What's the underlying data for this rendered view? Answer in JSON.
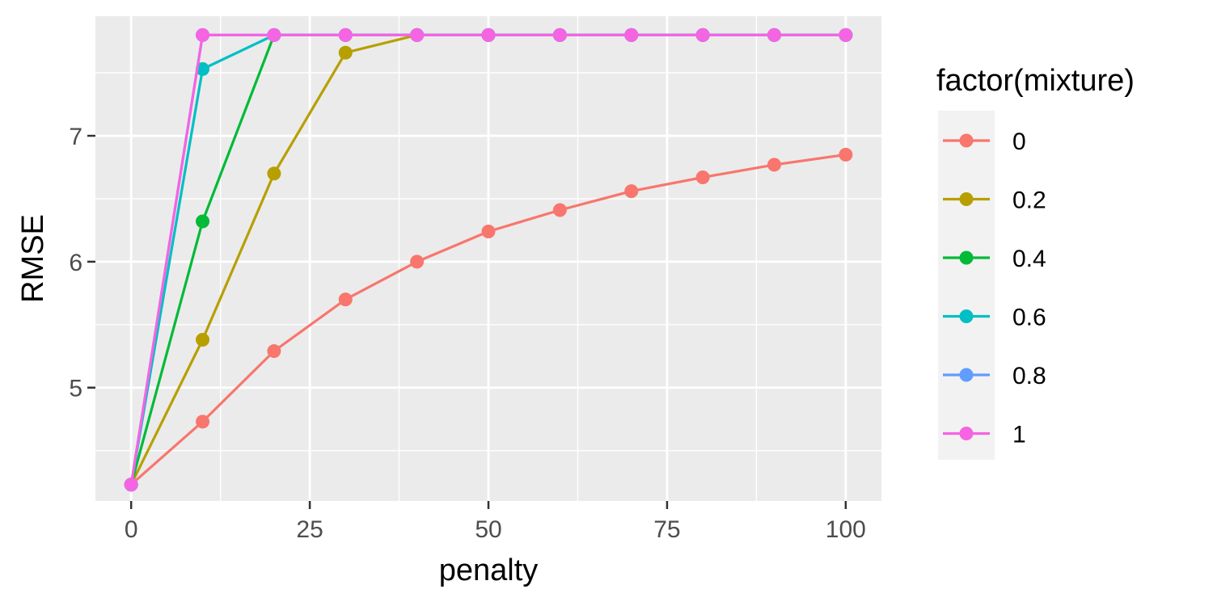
{
  "chart_data": {
    "type": "line",
    "title": "",
    "xlabel": "penalty",
    "ylabel": "RMSE",
    "xlim": [
      -5,
      105
    ],
    "ylim": [
      4.1,
      7.95
    ],
    "x_ticks": [
      0,
      25,
      50,
      75,
      100
    ],
    "x_tick_labels": [
      "0",
      "25",
      "50",
      "75",
      "100"
    ],
    "y_ticks": [
      5,
      6,
      7
    ],
    "y_tick_labels": [
      "5",
      "6",
      "7"
    ],
    "grid": true,
    "legend": {
      "title": "factor(mixture)",
      "position": "right"
    },
    "x": [
      0,
      10,
      20,
      30,
      40,
      50,
      60,
      70,
      80,
      90,
      100
    ],
    "series": [
      {
        "name": "0",
        "color": "#F8766D",
        "values": [
          4.23,
          4.73,
          5.29,
          5.7,
          6.0,
          6.24,
          6.41,
          6.56,
          6.67,
          6.77,
          6.85
        ]
      },
      {
        "name": "0.2",
        "color": "#B79F00",
        "values": [
          4.23,
          5.38,
          6.7,
          7.66,
          7.8,
          7.8,
          7.8,
          7.8,
          7.8,
          7.8,
          7.8
        ]
      },
      {
        "name": "0.4",
        "color": "#00BA38",
        "values": [
          4.23,
          6.32,
          7.8,
          7.8,
          7.8,
          7.8,
          7.8,
          7.8,
          7.8,
          7.8,
          7.8
        ]
      },
      {
        "name": "0.6",
        "color": "#00BFC4",
        "values": [
          4.23,
          7.53,
          7.8,
          7.8,
          7.8,
          7.8,
          7.8,
          7.8,
          7.8,
          7.8,
          7.8
        ]
      },
      {
        "name": "0.8",
        "color": "#619CFF",
        "values": [
          4.23,
          7.8,
          7.8,
          7.8,
          7.8,
          7.8,
          7.8,
          7.8,
          7.8,
          7.8,
          7.8
        ]
      },
      {
        "name": "1",
        "color": "#F564E3",
        "values": [
          4.23,
          7.8,
          7.8,
          7.8,
          7.8,
          7.8,
          7.8,
          7.8,
          7.8,
          7.8,
          7.8
        ]
      }
    ]
  }
}
